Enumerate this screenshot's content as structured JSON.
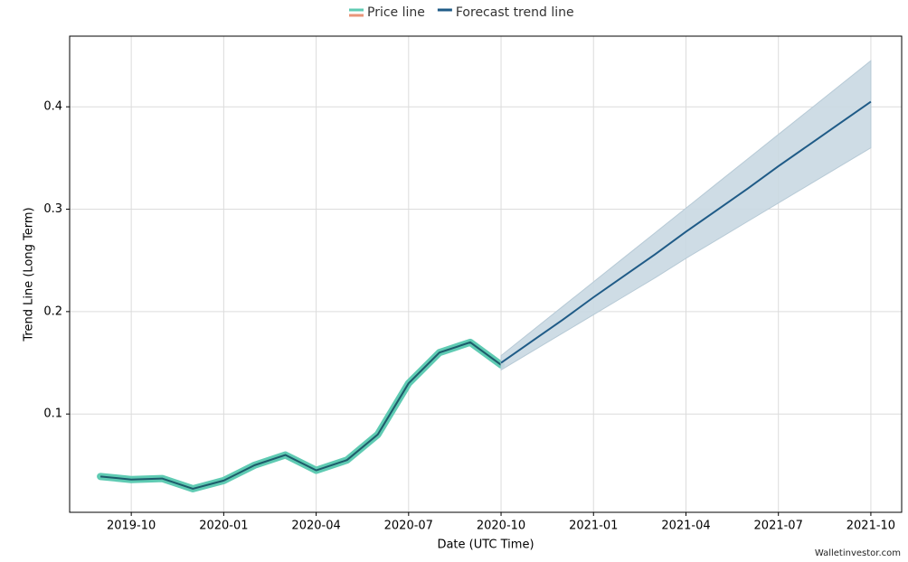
{
  "chart_data": {
    "type": "line",
    "x_label": "Date (UTC Time)",
    "y_label": "Trend Line (Long Term)",
    "xlim": [
      "2019-08",
      "2021-11"
    ],
    "xticks": [
      "2019-10",
      "2020-01",
      "2020-04",
      "2020-07",
      "2020-10",
      "2021-01",
      "2021-04",
      "2021-07",
      "2021-10"
    ],
    "ylim": [
      0.004,
      0.469
    ],
    "yticks": [
      0.1,
      0.2,
      0.3,
      0.4
    ],
    "grid": true,
    "legend": "top",
    "series": [
      {
        "name": "Price line",
        "color": "#5fcbb3",
        "x": [
          "2019-09",
          "2019-10",
          "2019-11",
          "2019-12",
          "2020-01",
          "2020-02",
          "2020-03",
          "2020-04",
          "2020-05",
          "2020-06",
          "2020-07",
          "2020-08",
          "2020-09",
          "2020-10"
        ],
        "values": [
          0.039,
          0.036,
          0.037,
          0.027,
          0.035,
          0.05,
          0.06,
          0.045,
          0.055,
          0.08,
          0.13,
          0.16,
          0.17,
          0.148
        ]
      },
      {
        "name": "Forecast trend line",
        "color": "#1f5b87",
        "band_color": "#c9d8e2",
        "x": [
          "2020-10",
          "2020-11",
          "2020-12",
          "2021-01",
          "2021-02",
          "2021-03",
          "2021-04",
          "2021-05",
          "2021-06",
          "2021-07",
          "2021-08",
          "2021-09",
          "2021-10"
        ],
        "values": [
          0.15,
          0.171,
          0.192,
          0.214,
          0.235,
          0.256,
          0.278,
          0.299,
          0.32,
          0.342,
          0.363,
          0.384,
          0.405
        ],
        "lower": [
          0.143,
          0.161,
          0.179,
          0.197,
          0.215,
          0.233,
          0.252,
          0.27,
          0.288,
          0.306,
          0.324,
          0.342,
          0.36
        ],
        "upper": [
          0.157,
          0.181,
          0.205,
          0.229,
          0.253,
          0.277,
          0.301,
          0.325,
          0.349,
          0.373,
          0.397,
          0.421,
          0.445
        ]
      }
    ]
  },
  "watermark": "Walletinvestor.com"
}
